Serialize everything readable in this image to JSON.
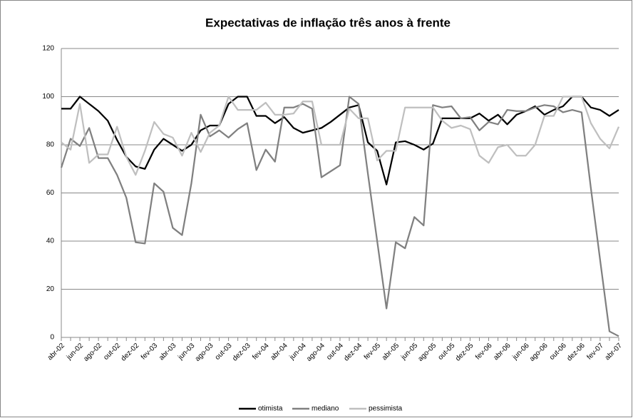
{
  "chart_data": {
    "type": "line",
    "title": "Expectativas de inflação três anos à frente",
    "categories": [
      "abr-02",
      null,
      "jun-02",
      null,
      "ago-02",
      null,
      "out-02",
      null,
      "dez-02",
      null,
      "fev-03",
      null,
      "abr-03",
      null,
      "jun-03",
      null,
      "ago-03",
      null,
      "out-03",
      null,
      "dez-03",
      null,
      "fev-04",
      null,
      "abr-04",
      null,
      "jun-04",
      null,
      "ago-04",
      null,
      "out-04",
      null,
      "dez-04",
      null,
      "fev-05",
      null,
      "abr-05",
      null,
      "jun-05",
      null,
      "ago-05",
      null,
      "out-05",
      null,
      "dez-05",
      null,
      "fev-06",
      null,
      "abr-06",
      null,
      "jun-06",
      null,
      "ago-06",
      null,
      "out-06",
      null,
      "dez-06",
      null,
      "fev-07",
      null,
      "abr-07"
    ],
    "series": [
      {
        "name": "otimista",
        "color": "#000000",
        "values": [
          95,
          95,
          100,
          97,
          94,
          90,
          82,
          75,
          71,
          70,
          78,
          82.5,
          80,
          77.5,
          80,
          86,
          88,
          88,
          97,
          100,
          100,
          92,
          92,
          89,
          91.5,
          87,
          85,
          86,
          87,
          89.5,
          92.5,
          95.5,
          96.5,
          81,
          77.5,
          63.5,
          81,
          81.5,
          80,
          78,
          80.5,
          91,
          91,
          91,
          91,
          93,
          90,
          92.5,
          88.5,
          92.5,
          94,
          96,
          92.5,
          94.5,
          96,
          100,
          100,
          95.5,
          94.5,
          92,
          94.5
        ]
      },
      {
        "name": "mediano",
        "color": "#808080",
        "values": [
          70.5,
          82.5,
          79.5,
          87,
          74.5,
          74.5,
          67.5,
          58,
          39.5,
          39,
          64,
          60.5,
          45.5,
          42.5,
          64,
          92.5,
          83.5,
          86,
          83,
          86.5,
          89,
          69.5,
          78,
          73,
          95.5,
          95.5,
          97,
          95,
          66.5,
          69,
          71.5,
          100,
          97,
          68,
          40,
          12,
          39.5,
          37,
          50,
          46.5,
          96.5,
          95.5,
          96,
          91,
          91.5,
          86,
          89.5,
          88.5,
          94.5,
          94,
          94,
          95.5,
          96.5,
          96,
          93.5,
          94.5,
          93.5,
          62,
          32,
          2.5,
          0.5
        ]
      },
      {
        "name": "pessimista",
        "color": "#bfbfbf",
        "values": [
          81,
          78,
          97,
          72.5,
          76,
          76,
          87.5,
          75,
          67.5,
          77.5,
          89.5,
          84.5,
          83,
          75.5,
          85,
          77,
          85,
          88,
          100,
          94.5,
          94.5,
          94.5,
          97.5,
          92.5,
          92.5,
          93,
          98,
          98,
          80,
          80,
          80,
          95,
          91,
          91,
          73.5,
          77.5,
          77.5,
          95.5,
          95.5,
          95.5,
          95.5,
          90,
          87,
          88,
          86.5,
          75.5,
          72.5,
          79,
          80,
          75.5,
          75.5,
          80,
          92,
          92,
          100,
          100,
          100,
          89,
          82.5,
          78.5,
          87.5
        ]
      }
    ],
    "ylim": [
      0,
      120
    ],
    "yticks": [
      0,
      20,
      40,
      60,
      80,
      100,
      120
    ],
    "grid": true,
    "legend": "bottom"
  }
}
